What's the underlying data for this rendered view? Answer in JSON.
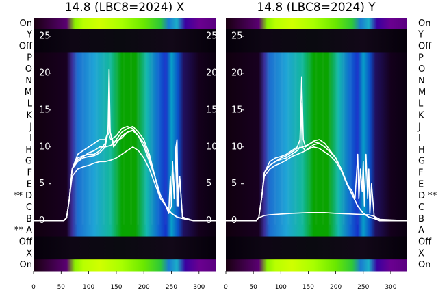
{
  "chart_data": [
    {
      "type": "heatmap",
      "title": "14.8 (LBC8=2024) X",
      "row_labels": [
        "On",
        "Y",
        "Off",
        "P",
        "O",
        "N",
        "M",
        "L",
        "K",
        "J",
        "I",
        "H",
        "G",
        "F",
        "E",
        "** D",
        "C",
        "B",
        "** A",
        "Off",
        "X",
        "On"
      ],
      "label_side": "left",
      "x_ticks": [
        0,
        50,
        100,
        150,
        200,
        250,
        300
      ],
      "xlim": [
        0,
        330
      ],
      "overlay_y_ticks": [
        0,
        5,
        10,
        15,
        20,
        25
      ],
      "overlay_ylim": [
        -6.8,
        27.5
      ],
      "colormap": "nipy_spectral",
      "line_color": "#ffffff",
      "series": [
        {
          "x": [
            0,
            55,
            60,
            65,
            70,
            80,
            90,
            100,
            110,
            120,
            130,
            135,
            137,
            139,
            145,
            150,
            160,
            170,
            180,
            190,
            200,
            210,
            220,
            230,
            240,
            245,
            248,
            250,
            252,
            255,
            258,
            260,
            262,
            265,
            270,
            290,
            330
          ],
          "y": [
            0,
            0,
            0.5,
            3,
            7,
            8.5,
            8.8,
            9,
            9,
            9.5,
            10.5,
            12,
            20.5,
            12,
            10.5,
            11,
            12,
            12.5,
            12.8,
            12,
            11,
            9,
            6,
            3,
            2,
            1,
            6,
            2,
            8,
            3,
            10,
            11,
            2,
            6,
            0.5,
            0,
            0
          ]
        },
        {
          "x": [
            0,
            55,
            60,
            65,
            70,
            80,
            90,
            100,
            110,
            120,
            130,
            135,
            137,
            139,
            145,
            150,
            160,
            170,
            180,
            190,
            200,
            210,
            220,
            230,
            240,
            245,
            250,
            252,
            255,
            258,
            260,
            265,
            270,
            290,
            330
          ],
          "y": [
            0,
            0,
            0.4,
            3,
            7,
            8,
            8.5,
            8.7,
            8.8,
            9.2,
            10,
            12,
            15.5,
            12,
            10,
            10.5,
            11.5,
            12,
            12.2,
            11.5,
            10.5,
            8.5,
            6,
            3,
            2,
            1,
            2,
            8,
            3,
            10,
            2,
            6,
            0.5,
            0,
            0
          ]
        },
        {
          "x": [
            0,
            55,
            60,
            65,
            70,
            80,
            90,
            100,
            110,
            120,
            130,
            135,
            140,
            150,
            160,
            170,
            180,
            190,
            200,
            210,
            220,
            230,
            240,
            250,
            260,
            270,
            290,
            330
          ],
          "y": [
            0,
            0,
            0.4,
            3,
            7,
            9,
            9.5,
            10,
            10.5,
            11,
            11,
            12,
            11,
            11.5,
            12.5,
            12.8,
            12.5,
            11.5,
            10,
            8,
            6,
            3,
            2,
            1,
            0.5,
            0.3,
            0,
            0
          ]
        },
        {
          "x": [
            0,
            55,
            60,
            65,
            70,
            80,
            90,
            100,
            110,
            120,
            130,
            140,
            150,
            160,
            170,
            180,
            190,
            200,
            210,
            220,
            230,
            240,
            250,
            260,
            270,
            290,
            330
          ],
          "y": [
            0,
            0,
            0.4,
            3,
            6,
            7,
            7.3,
            7.5,
            7.8,
            8,
            8,
            8.2,
            8.5,
            9,
            9.5,
            10,
            9.5,
            8.5,
            7,
            5,
            3,
            2,
            1,
            0.5,
            0.3,
            0,
            0
          ]
        },
        {
          "x": [
            0,
            55,
            60,
            65,
            70,
            80,
            90,
            100,
            110,
            120,
            130,
            140,
            150,
            160,
            170,
            180,
            190,
            200,
            210,
            220,
            230,
            240,
            250,
            260,
            270,
            290,
            330
          ],
          "y": [
            0,
            0,
            0.4,
            3,
            7,
            8.2,
            8.7,
            9.2,
            9.5,
            10,
            10,
            10.2,
            10.8,
            11.2,
            12,
            12.3,
            11.5,
            10.5,
            8.5,
            6,
            3.5,
            2,
            1,
            0.5,
            0.3,
            0,
            0
          ]
        }
      ]
    },
    {
      "type": "heatmap",
      "title": "14.8 (LBC8=2024) Y",
      "row_labels": [
        "On",
        "Y",
        "Off",
        "P",
        "O",
        "N",
        "M",
        "L",
        "K",
        "J",
        "I",
        "H",
        "G",
        "F",
        "E",
        "D **",
        "C",
        "B",
        "A",
        "Off",
        "X",
        "On"
      ],
      "label_side": "right",
      "x_ticks": [
        0,
        50,
        100,
        150,
        200,
        250,
        300
      ],
      "xlim": [
        0,
        330
      ],
      "overlay_y_ticks": [
        0,
        5,
        10,
        15,
        20,
        25
      ],
      "overlay_ylim": [
        -6.8,
        27.5
      ],
      "colormap": "nipy_spectral",
      "line_color": "#ffffff",
      "series": [
        {
          "x": [
            0,
            55,
            60,
            65,
            70,
            80,
            90,
            100,
            110,
            120,
            130,
            135,
            137,
            139,
            145,
            150,
            160,
            170,
            180,
            190,
            200,
            210,
            220,
            230,
            235,
            240,
            242,
            245,
            248,
            250,
            252,
            255,
            258,
            260,
            262,
            265,
            270,
            280,
            330
          ],
          "y": [
            0,
            0,
            0.5,
            3,
            6.5,
            7.5,
            8,
            8.3,
            8.5,
            9,
            9.5,
            10,
            16,
            10,
            9.5,
            9.8,
            10.3,
            10.5,
            10,
            9.3,
            8.5,
            7,
            5,
            4,
            3,
            9,
            3,
            7,
            4,
            8,
            2,
            9,
            3,
            7,
            1,
            5,
            0.5,
            0,
            0
          ]
        },
        {
          "x": [
            0,
            55,
            60,
            65,
            70,
            80,
            90,
            100,
            110,
            120,
            130,
            135,
            138,
            141,
            145,
            150,
            160,
            170,
            180,
            190,
            200,
            210,
            220,
            230,
            240,
            250,
            260,
            270,
            280,
            330
          ],
          "y": [
            0,
            0,
            0.5,
            3,
            6.5,
            8,
            8.5,
            8.7,
            9,
            9.5,
            10,
            11,
            19.5,
            11,
            10,
            10.3,
            10.8,
            11,
            10.5,
            9.5,
            8.5,
            7,
            5,
            3.5,
            2,
            1,
            0.5,
            0.3,
            0,
            0
          ]
        },
        {
          "x": [
            0,
            55,
            60,
            65,
            70,
            80,
            90,
            100,
            110,
            120,
            130,
            140,
            150,
            160,
            170,
            180,
            190,
            200,
            210,
            220,
            230,
            240,
            250,
            260,
            270,
            280,
            330
          ],
          "y": [
            0,
            0,
            0.5,
            3,
            6,
            7,
            7.5,
            7.8,
            8.2,
            8.7,
            9,
            9.3,
            9.7,
            10,
            9.8,
            9.3,
            8.8,
            8,
            6.8,
            5,
            3.5,
            2,
            1,
            0.5,
            0.3,
            0,
            0
          ]
        },
        {
          "x": [
            0,
            55,
            60,
            65,
            70,
            80,
            90,
            100,
            110,
            120,
            130,
            140,
            150,
            160,
            170,
            180,
            190,
            200,
            210,
            220,
            230,
            240,
            250,
            260,
            270,
            280,
            330
          ],
          "y": [
            0,
            0,
            0.5,
            3,
            6.5,
            7.5,
            8,
            8.5,
            8.8,
            9.3,
            9.8,
            10,
            10.3,
            10.7,
            10.5,
            10,
            9.3,
            8.5,
            7,
            5.2,
            3.5,
            2,
            1,
            0.5,
            0.3,
            0,
            0
          ]
        },
        {
          "x": [
            0,
            55,
            60,
            70,
            80,
            100,
            120,
            150,
            180,
            200,
            230,
            260,
            270,
            280,
            330
          ],
          "y": [
            0,
            0,
            0.4,
            0.7,
            0.8,
            0.9,
            1,
            1.1,
            1.1,
            1,
            0.9,
            0.8,
            0.6,
            0.2,
            0
          ]
        }
      ]
    }
  ]
}
